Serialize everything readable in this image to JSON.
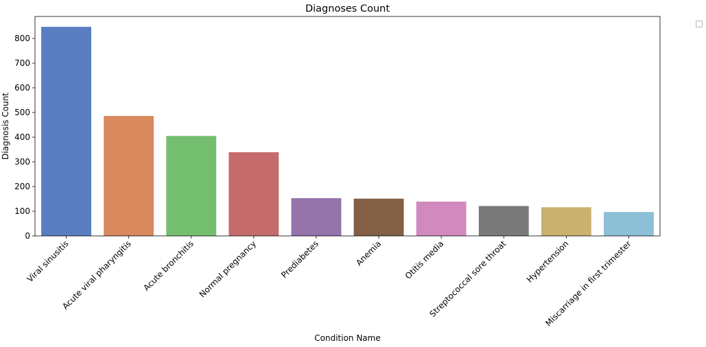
{
  "colors": {
    "bars": [
      "#5a7dc1",
      "#d98a5e",
      "#73bf6f",
      "#c66b6b",
      "#9474ab",
      "#825f45",
      "#d289be",
      "#797979",
      "#c9b26f",
      "#8dc0d6"
    ],
    "axis": "#000000"
  },
  "chart_data": {
    "type": "bar",
    "title": "Diagnoses Count",
    "xlabel": "Condition Name",
    "ylabel": "Diagnosis Count",
    "categories": [
      "Viral sinusitis",
      "Acute viral pharyngitis",
      "Acute bronchitis",
      "Normal pregnancy",
      "Prediabetes",
      "Anemia",
      "Otitis media",
      "Streptococcal sore throat",
      "Hypertension",
      "Miscarriage in first trimester"
    ],
    "values": [
      847,
      486,
      405,
      339,
      153,
      151,
      139,
      121,
      116,
      97
    ],
    "ylim": [
      0,
      889
    ],
    "yticks": [
      "0",
      "100",
      "200",
      "300",
      "400",
      "500",
      "600",
      "700",
      "800"
    ],
    "grid": false,
    "legend": "top-right outside (empty)"
  }
}
